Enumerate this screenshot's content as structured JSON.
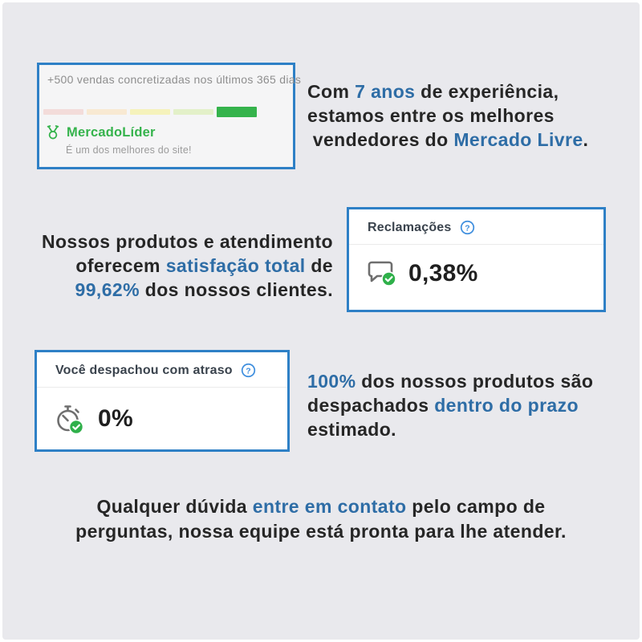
{
  "theme": {
    "page_background": "#e9e9ed",
    "frame_color": "#ffffff",
    "card_border_blue": "#2e80c6",
    "accent_blue": "#2e6da6",
    "help_icon_blue": "#3e8ede",
    "brand_green": "#35b34c",
    "dark_text": "#262626",
    "muted_text": "#8e8e8e"
  },
  "leader_card": {
    "sales_line": "+500 vendas concretizadas nos últimos 365 dias",
    "reputation_levels": [
      {
        "name": "level-red",
        "color": "#f3dcda",
        "active": false
      },
      {
        "name": "level-orange",
        "color": "#f8e9d2",
        "active": false
      },
      {
        "name": "level-yellow",
        "color": "#f5f2bb",
        "active": false
      },
      {
        "name": "level-light-green",
        "color": "#e3f0c9",
        "active": false
      },
      {
        "name": "level-green",
        "color": "#35b34c",
        "active": true
      }
    ],
    "medal_icon": "mercado-lider-medal-icon",
    "title": "MercadoLíder",
    "subtitle": "É um dos melhores do site!"
  },
  "experience_text": {
    "segments": [
      {
        "t": "Com ",
        "hl": false
      },
      {
        "t": "7 anos",
        "hl": true
      },
      {
        "t": " de experiência,\nestamos entre os melhores\n vendedores do ",
        "hl": false
      },
      {
        "t": "Mercado Livre",
        "hl": true
      },
      {
        "t": ".",
        "hl": false
      }
    ]
  },
  "satisfaction_text": {
    "segments": [
      {
        "t": "Nossos produtos e atendimento\noferecem ",
        "hl": false
      },
      {
        "t": "satisfação total",
        "hl": true
      },
      {
        "t": " de\n",
        "hl": false
      },
      {
        "t": "99,62%",
        "hl": true
      },
      {
        "t": " dos nossos clientes.",
        "hl": false
      }
    ]
  },
  "complaints_card": {
    "title": "Reclamações",
    "help_icon": "question-mark-circle-icon",
    "metric_icon": "chat-bubble-check-icon",
    "value": "0,38%"
  },
  "late_dispatch_card": {
    "title": "Você despachou com atraso",
    "help_icon": "question-mark-circle-icon",
    "metric_icon": "stopwatch-check-icon",
    "value": "0%"
  },
  "dispatch_text": {
    "segments": [
      {
        "t": "100%",
        "hl": true
      },
      {
        "t": " dos nossos produtos são\ndespachados ",
        "hl": false
      },
      {
        "t": "dentro do prazo",
        "hl": true
      },
      {
        "t": "\nestimado.",
        "hl": false
      }
    ]
  },
  "contact_text": {
    "segments": [
      {
        "t": "Qualquer dúvida ",
        "hl": false
      },
      {
        "t": "entre em contato",
        "hl": true
      },
      {
        "t": " pelo campo de\nperguntas, nossa equipe está pronta para lhe atender.",
        "hl": false
      }
    ]
  }
}
